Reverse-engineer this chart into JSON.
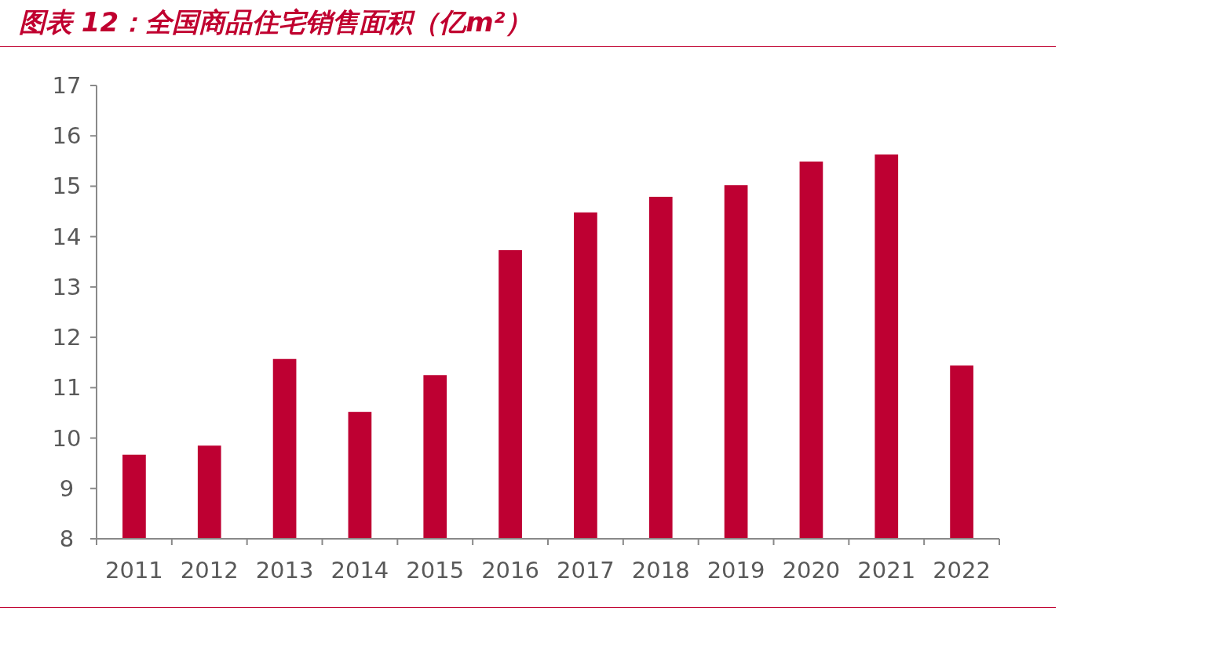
{
  "chart_data": {
    "type": "bar",
    "title": "图表 12：全国商品住宅销售面积（亿m²）",
    "categories": [
      "2011",
      "2012",
      "2013",
      "2014",
      "2015",
      "2016",
      "2017",
      "2018",
      "2019",
      "2020",
      "2021",
      "2022"
    ],
    "values": [
      9.67,
      9.85,
      11.57,
      10.52,
      11.25,
      13.73,
      14.48,
      14.79,
      15.02,
      15.49,
      15.63,
      11.44
    ],
    "color": "#be0032",
    "ylim": [
      8,
      17
    ],
    "yticks": [
      8,
      9,
      10,
      11,
      12,
      13,
      14,
      15,
      16,
      17
    ]
  }
}
